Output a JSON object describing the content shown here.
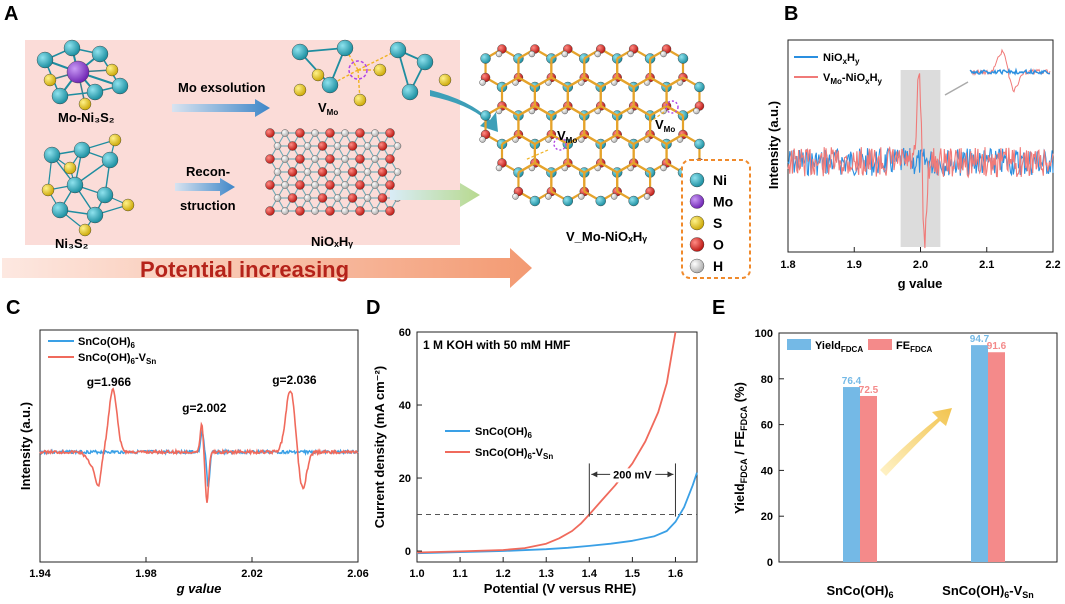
{
  "panels": {
    "a": {
      "letter": "A",
      "label_mo_ni3s2": "Mo-Ni₃S₂",
      "label_ni3s2": "Ni₃S₂",
      "label_niox": "NiOₓHᵧ",
      "label_vmo_niox": "V_Mo-NiOₓHᵧ",
      "arrow_mo_exsolution": "Mo exsolution",
      "arrow_recon_1": "Recon-",
      "arrow_recon_2": "struction",
      "vacancy_label": "V_Mo",
      "banner_text": "Potential increasing",
      "legend": [
        {
          "label": "Ni",
          "color": "#1ea3b5"
        },
        {
          "label": "Mo",
          "color": "#8d3fd0"
        },
        {
          "label": "S",
          "color": "#e6c619"
        },
        {
          "label": "O",
          "color": "#d42a25"
        },
        {
          "label": "H",
          "color": "#cfcfcf"
        }
      ]
    },
    "b": {
      "letter": "B"
    },
    "c": {
      "letter": "C"
    },
    "d": {
      "letter": "D"
    },
    "e": {
      "letter": "E"
    }
  },
  "chart_data": [
    {
      "id": "B",
      "type": "line",
      "xlabel": "g value",
      "ylabel": "Intensity (a.u.)",
      "xlim": [
        1.8,
        2.2
      ],
      "xticks": [
        "1.8",
        "1.9",
        "2.0",
        "2.1",
        "2.2"
      ],
      "highlight_range": [
        1.97,
        2.03
      ],
      "series": [
        {
          "name": "NiOxHy",
          "color": "#2a8fe0",
          "signal": "noise baseline, no resonance"
        },
        {
          "name": "VMo-NiOxHy",
          "color": "#f07a78",
          "signal": "derivative resonance near g = 2.00"
        }
      ],
      "inset": "zoom of EPR signal"
    },
    {
      "id": "C",
      "type": "line",
      "xlabel": "g value",
      "ylabel": "Intensity (a.u.)",
      "xlim": [
        1.94,
        2.06
      ],
      "xticks": [
        "1.94",
        "1.98",
        "2.02",
        "2.06"
      ],
      "series": [
        {
          "name": "SnCo(OH)6",
          "color": "#3aa0e6"
        },
        {
          "name": "SnCo(OH)6-VSn",
          "color": "#f06a5c"
        }
      ],
      "annotations": [
        {
          "text": "g=1.966",
          "g": 1.966
        },
        {
          "text": "g=2.002",
          "g": 2.002
        },
        {
          "text": "g=2.036",
          "g": 2.036
        }
      ]
    },
    {
      "id": "D",
      "type": "line",
      "title": "1 M KOH with 50 mM HMF",
      "xlabel": "Potential (V versus RHE)",
      "ylabel": "Current density (mA cm⁻²)",
      "xlim": [
        1.0,
        1.65
      ],
      "ylim": [
        -3,
        60
      ],
      "xticks": [
        "1.0",
        "1.1",
        "1.2",
        "1.3",
        "1.4",
        "1.5",
        "1.6"
      ],
      "yticks": [
        "0",
        "20",
        "40",
        "60"
      ],
      "reference_line_y": 10,
      "annotation": "200 mV",
      "series": [
        {
          "name": "SnCo(OH)6",
          "color": "#3aa0e6",
          "x": [
            1.0,
            1.1,
            1.2,
            1.3,
            1.35,
            1.4,
            1.45,
            1.5,
            1.55,
            1.58,
            1.6,
            1.62,
            1.64,
            1.65
          ],
          "y": [
            -0.6,
            -0.3,
            0.0,
            0.5,
            0.9,
            1.4,
            2.0,
            2.8,
            4.0,
            5.5,
            8.0,
            12.0,
            18.0,
            21.5
          ]
        },
        {
          "name": "SnCo(OH)6-VSn",
          "color": "#f06a5c",
          "x": [
            1.0,
            1.1,
            1.2,
            1.25,
            1.3,
            1.33,
            1.36,
            1.38,
            1.4,
            1.43,
            1.46,
            1.5,
            1.53,
            1.56,
            1.58,
            1.6
          ],
          "y": [
            -0.4,
            -0.1,
            0.3,
            0.8,
            2.0,
            3.5,
            5.5,
            7.5,
            10.0,
            14.0,
            18.0,
            24.0,
            30.0,
            38.0,
            46.0,
            60.0
          ]
        }
      ]
    },
    {
      "id": "E",
      "type": "bar",
      "ylabel": "Yield_FDCA / FE_FDCA (%)",
      "ylim": [
        0,
        100
      ],
      "yticks": [
        "0",
        "20",
        "40",
        "60",
        "80",
        "100"
      ],
      "categories": [
        "SnCo(OH)₆",
        "SnCo(OH)₆-V_Sn"
      ],
      "series": [
        {
          "name": "Yield_FDCA",
          "color": "#74b9e6",
          "values": [
            76.4,
            94.7
          ]
        },
        {
          "name": "FE_FDCA",
          "color": "#f48a8a",
          "values": [
            72.5,
            91.6
          ]
        }
      ]
    }
  ]
}
